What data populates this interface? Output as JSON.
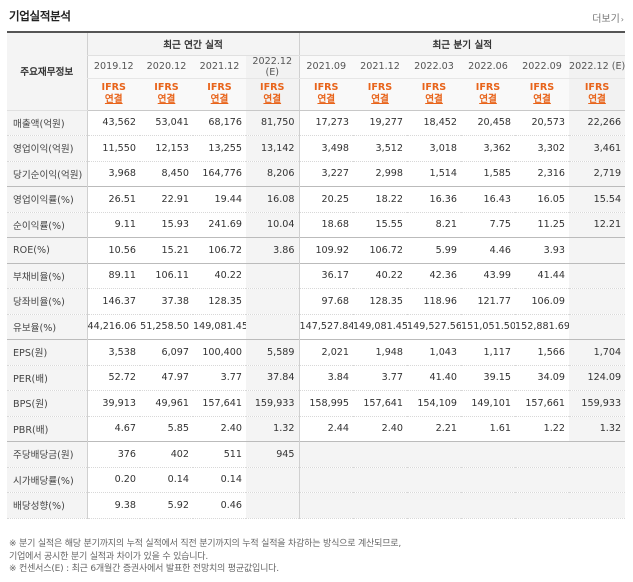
{
  "header": {
    "title": "기업실적분석",
    "more_label": "더보기",
    "more_arrow": "›"
  },
  "table": {
    "corner_label": "주요재무정보",
    "annual_group": "최근 연간 실적",
    "quarter_group": "최근 분기 실적",
    "annual_periods": [
      "2019.12",
      "2020.12",
      "2021.12",
      "2022.12\n(E)"
    ],
    "quarter_periods": [
      "2021.09",
      "2021.12",
      "2022.03",
      "2022.06",
      "2022.09",
      "2022.12 (E)"
    ],
    "ifrs_top": "IFRS",
    "ifrs_bottom": "연결",
    "rows": [
      {
        "label": "매출액(억원)",
        "annual": [
          "43,562",
          "53,041",
          "68,176",
          "81,750"
        ],
        "quarter": [
          "17,273",
          "19,277",
          "18,452",
          "20,458",
          "20,573",
          "22,266"
        ]
      },
      {
        "label": "영업이익(억원)",
        "annual": [
          "11,550",
          "12,153",
          "13,255",
          "13,142"
        ],
        "quarter": [
          "3,498",
          "3,512",
          "3,018",
          "3,362",
          "3,302",
          "3,461"
        ]
      },
      {
        "label": "당기순이익(억원)",
        "annual": [
          "3,968",
          "8,450",
          "164,776",
          "8,206"
        ],
        "quarter": [
          "3,227",
          "2,998",
          "1,514",
          "1,585",
          "2,316",
          "2,719"
        ]
      },
      {
        "label": "영업이익률(%)",
        "annual": [
          "26.51",
          "22.91",
          "19.44",
          "16.08"
        ],
        "quarter": [
          "20.25",
          "18.22",
          "16.36",
          "16.43",
          "16.05",
          "15.54"
        ]
      },
      {
        "label": "순이익률(%)",
        "annual": [
          "9.11",
          "15.93",
          "241.69",
          "10.04"
        ],
        "quarter": [
          "18.68",
          "15.55",
          "8.21",
          "7.75",
          "11.25",
          "12.21"
        ]
      },
      {
        "label": "ROE(%)",
        "annual": [
          "10.56",
          "15.21",
          "106.72",
          "3.86"
        ],
        "quarter": [
          "109.92",
          "106.72",
          "5.99",
          "4.46",
          "3.93",
          ""
        ]
      },
      {
        "label": "부채비율(%)",
        "annual": [
          "89.11",
          "106.11",
          "40.22",
          ""
        ],
        "quarter": [
          "36.17",
          "40.22",
          "42.36",
          "43.99",
          "41.44",
          ""
        ]
      },
      {
        "label": "당좌비율(%)",
        "annual": [
          "146.37",
          "37.38",
          "128.35",
          ""
        ],
        "quarter": [
          "97.68",
          "128.35",
          "118.96",
          "121.77",
          "106.09",
          ""
        ]
      },
      {
        "label": "유보율(%)",
        "annual": [
          "44,216.06",
          "51,258.50",
          "149,081.45",
          ""
        ],
        "quarter": [
          "147,527.84",
          "149,081.45",
          "149,527.56",
          "151,051.50",
          "152,881.69",
          ""
        ]
      },
      {
        "label": "EPS(원)",
        "annual": [
          "3,538",
          "6,097",
          "100,400",
          "5,589"
        ],
        "quarter": [
          "2,021",
          "1,948",
          "1,043",
          "1,117",
          "1,566",
          "1,704"
        ]
      },
      {
        "label": "PER(배)",
        "annual": [
          "52.72",
          "47.97",
          "3.77",
          "37.84"
        ],
        "quarter": [
          "3.84",
          "3.77",
          "41.40",
          "39.15",
          "34.09",
          "124.09"
        ]
      },
      {
        "label": "BPS(원)",
        "annual": [
          "39,913",
          "49,961",
          "157,641",
          "159,933"
        ],
        "quarter": [
          "158,995",
          "157,641",
          "154,109",
          "149,101",
          "157,661",
          "159,933"
        ]
      },
      {
        "label": "PBR(배)",
        "annual": [
          "4.67",
          "5.85",
          "2.40",
          "1.32"
        ],
        "quarter": [
          "2.44",
          "2.40",
          "2.21",
          "1.61",
          "1.22",
          "1.32"
        ]
      },
      {
        "label": "주당배당금(원)",
        "annual": [
          "376",
          "402",
          "511",
          "945"
        ],
        "quarter": [
          "",
          "",
          "",
          "",
          "",
          ""
        ]
      },
      {
        "label": "시가배당률(%)",
        "annual": [
          "0.20",
          "0.14",
          "0.14",
          ""
        ],
        "quarter": [
          "",
          "",
          "",
          "",
          "",
          ""
        ]
      },
      {
        "label": "배당성향(%)",
        "annual": [
          "9.38",
          "5.92",
          "0.46",
          ""
        ],
        "quarter": [
          "",
          "",
          "",
          "",
          "",
          ""
        ]
      }
    ]
  },
  "notes": [
    "※ 분기 실적은 해당 분기까지의 누적 실적에서 직전 분기까지의 누적 실적을 차감하는 방식으로 계산되므로,",
    "   기업에서 공시한 분기 실적과 차이가 있을 수 있습니다.",
    "※ 컨센서스(E) : 최근 6개월간 증권사에서 발표한 전망치의 평균값입니다."
  ]
}
